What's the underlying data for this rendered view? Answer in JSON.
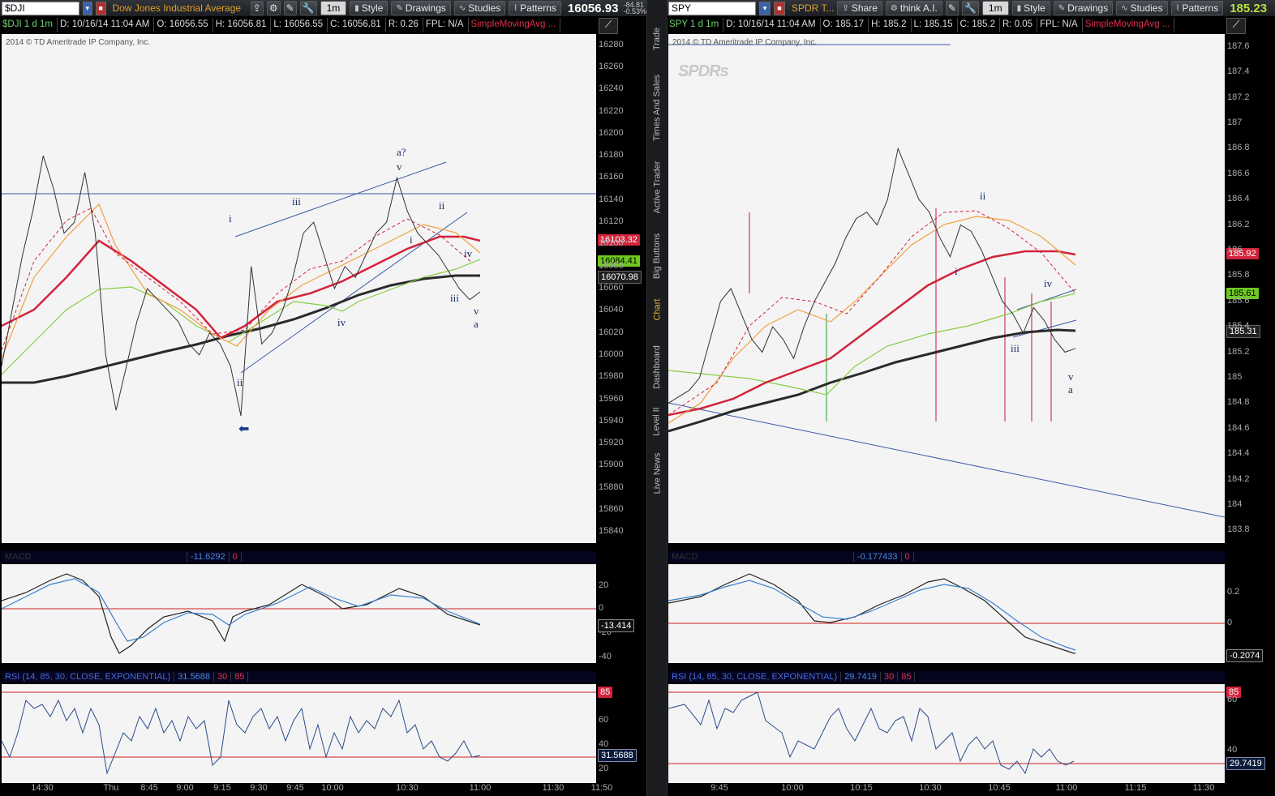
{
  "left": {
    "symbol": "$DJI",
    "description": "Dow Jones Industrial Average",
    "tools": [
      "Style",
      "Drawings",
      "Studies",
      "Patterns"
    ],
    "aggregation": "1m",
    "last": "16056.93",
    "change": "-84.81",
    "change_pct": "-0.53%",
    "info": {
      "sym": "$DJI 1 d 1m",
      "date": "D: 10/16/14 11:04 AM",
      "o": "O: 16056.55",
      "h": "H: 16056.81",
      "l": "L: 16056.55",
      "c": "C: 16056.81",
      "r": "R: 0.26",
      "fpl": "FPL: N/A",
      "study": "SimpleMovingAvg ..."
    },
    "copyright": "2014 © TD Ameritrade IP Company, Inc.",
    "price_tags": [
      {
        "value": "16103.32",
        "bg": "#d2243c",
        "fg": "#ffffff"
      },
      {
        "value": "16084.41",
        "bg": "#6fc820",
        "fg": "#000000"
      },
      {
        "value": "16070.98",
        "bg": "#202020",
        "fg": "#ffffff"
      }
    ],
    "macd_header": {
      "value": "-11.6292",
      "zero": "0"
    },
    "macd_tag": "-13.414",
    "rsi_header": {
      "label": "RSI (14, 85, 30, CLOSE, EXPONENTIAL)",
      "value": "31.5688",
      "low": "30",
      "high": "85"
    },
    "rsi_tags": [
      "85",
      "31.5688"
    ],
    "wave_labels": [
      "i",
      "ii",
      "iii",
      "iv",
      "v",
      "a?",
      "ii",
      "i",
      "iii",
      "iv",
      "v",
      "a"
    ],
    "xticks": [
      "14:30",
      "Thu",
      "8:45",
      "9:00",
      "9:15",
      "9:30",
      "9:45",
      "10:00",
      "10:30",
      "11:00",
      "11:30",
      "11:50"
    ]
  },
  "right": {
    "symbol": "SPY",
    "description": "SPDR T...",
    "tools": [
      "Share",
      "think A.I.",
      "Style",
      "Drawings",
      "Studies",
      "Patterns"
    ],
    "aggregation": "1m",
    "last": "185.23",
    "info": {
      "sym": "SPY 1 d 1m",
      "date": "D: 10/16/14 11:04 AM",
      "o": "O: 185.17",
      "h": "H: 185.2",
      "l": "L: 185.15",
      "c": "C: 185.2",
      "r": "R: 0.05",
      "fpl": "FPL: N/A",
      "study": "SimpleMovingAvg ..."
    },
    "copyright": "2014 © TD Ameritrade IP Company, Inc.",
    "watermark": "SPDRs",
    "price_tags": [
      {
        "value": "185.92",
        "bg": "#d2243c",
        "fg": "#ffffff"
      },
      {
        "value": "185.61",
        "bg": "#6fc820",
        "fg": "#000000"
      },
      {
        "value": "185.31",
        "bg": "#202020",
        "fg": "#ffffff"
      }
    ],
    "macd_header": {
      "value": "-0.177433",
      "zero": "0"
    },
    "macd_tag": "-0.2074",
    "rsi_header": {
      "label": "RSI (14, 85, 30, CLOSE, EXPONENTIAL)",
      "value": "29.7419",
      "low": "30",
      "high": "85"
    },
    "rsi_tags": [
      "85",
      "29.7419"
    ],
    "wave_labels": [
      "i",
      "ii",
      "iii",
      "iv",
      "v",
      "a"
    ],
    "xticks": [
      "9:45",
      "10:00",
      "10:15",
      "10:30",
      "10:45",
      "11:00",
      "11:15",
      "11:30"
    ]
  },
  "sidebar_tabs": [
    "Trade",
    "Times And Sales",
    "Active Trader",
    "Big Buttons",
    "Chart",
    "Dashboard",
    "Level II",
    "Live News"
  ],
  "chart_data": [
    {
      "type": "line",
      "title": "$DJI 1 d 1m",
      "ylim": [
        15830,
        16290
      ],
      "yticks": [
        16280,
        16260,
        16240,
        16220,
        16200,
        16180,
        16160,
        16140,
        16120,
        16100,
        16080,
        16060,
        16040,
        16020,
        16000,
        15980,
        15960,
        15940,
        15920,
        15900,
        15880,
        15860,
        15840
      ],
      "series": [
        {
          "values": [
            15990,
            16040,
            16090,
            16130,
            16180,
            16150,
            16110,
            16120,
            16165,
            16110,
            16000,
            15950,
            15990,
            16030,
            16060,
            16050,
            16040,
            16030,
            16010,
            16000,
            16020,
            16010,
            15990,
            15945,
            16080,
            16010,
            16020,
            16040,
            16070,
            16110,
            16120,
            16090,
            16060,
            16080,
            16070,
            16090,
            16110,
            16120,
            16160,
            16130,
            16110,
            16100,
            16090,
            16075,
            16060,
            16050,
            16057
          ]
        }
      ],
      "annotations": [
        "i",
        "ii",
        "iii",
        "iv",
        "v",
        "a?",
        "ii",
        "i",
        "iii",
        "iv",
        "v",
        "a"
      ]
    },
    {
      "type": "line",
      "title": "SPY 1 d 1m",
      "ylim": [
        183.7,
        187.7
      ],
      "yticks": [
        187.6,
        187.4,
        187.2,
        187,
        186.8,
        186.6,
        186.4,
        186.2,
        186,
        185.8,
        185.6,
        185.4,
        185.2,
        185,
        184.8,
        184.6,
        184.4,
        184.2,
        184,
        183.8
      ],
      "series": [
        {
          "values": [
            184.8,
            184.85,
            184.9,
            185.0,
            185.3,
            185.6,
            185.7,
            185.5,
            185.3,
            185.2,
            185.4,
            185.3,
            185.15,
            185.4,
            185.6,
            185.75,
            185.9,
            186.1,
            186.25,
            186.3,
            186.2,
            186.4,
            186.8,
            186.6,
            186.4,
            186.3,
            186.1,
            185.95,
            186.2,
            186.15,
            186.0,
            185.8,
            185.6,
            185.5,
            185.35,
            185.55,
            185.45,
            185.3,
            185.2,
            185.23
          ]
        }
      ],
      "annotations": [
        "i",
        "ii",
        "iii",
        "iv",
        "v",
        "a"
      ]
    }
  ]
}
